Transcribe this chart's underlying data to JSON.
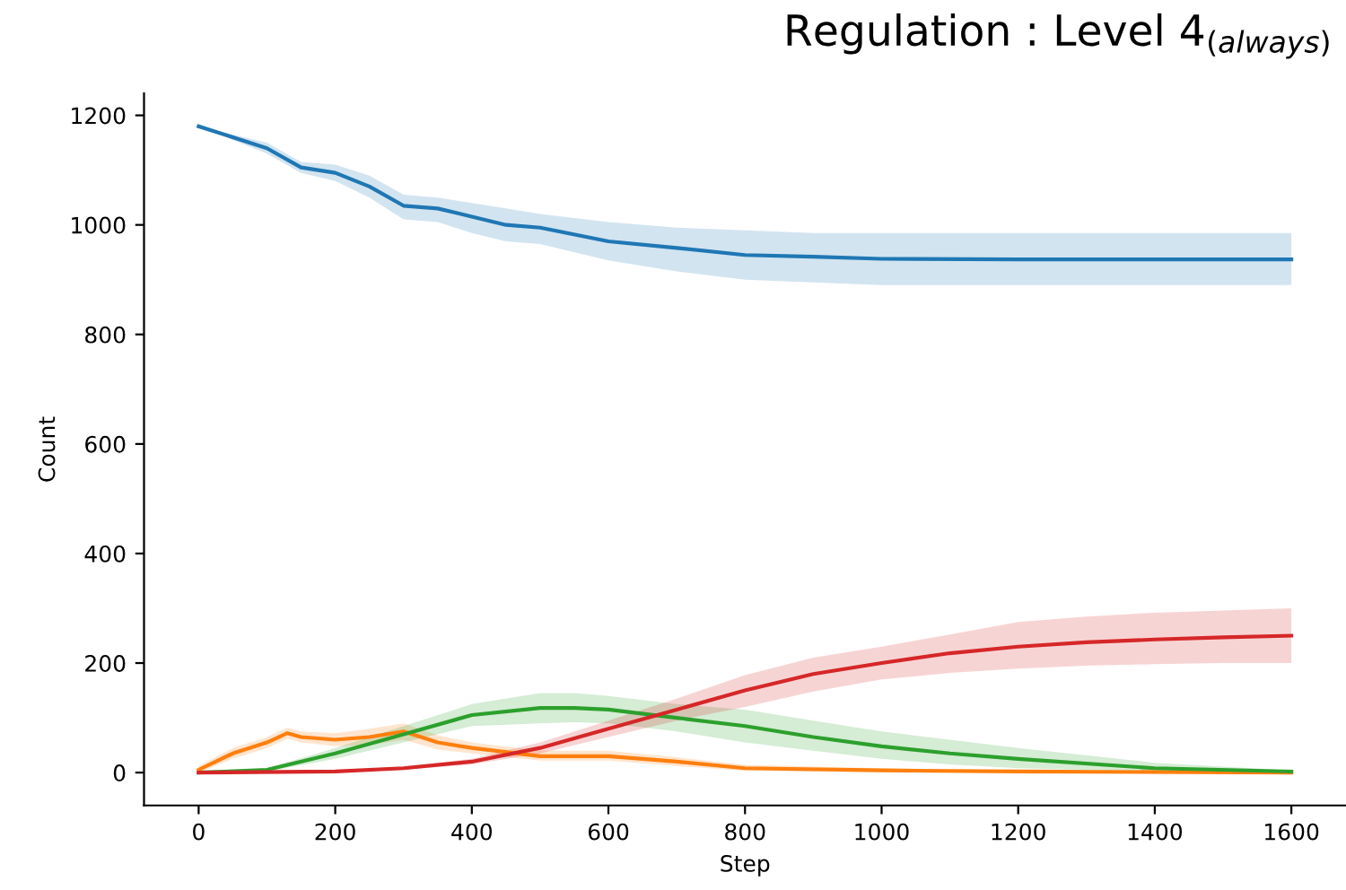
{
  "chart_data": {
    "type": "line",
    "title": "Regulation : Level 4$_{(always)}$",
    "xlabel": "Step",
    "ylabel": "Count",
    "xlim": [
      -80,
      1680
    ],
    "ylim": [
      -60,
      1240
    ],
    "xticks": [
      0,
      200,
      400,
      600,
      800,
      1000,
      1200,
      1400,
      1600
    ],
    "yticks": [
      0,
      200,
      400,
      600,
      800,
      1000,
      1200
    ],
    "grid": false,
    "series": [
      {
        "color": "#1f77b4",
        "x": [
          0,
          100,
          150,
          200,
          250,
          300,
          350,
          400,
          450,
          500,
          600,
          700,
          800,
          900,
          1000,
          1200,
          1400,
          1600
        ],
        "values": [
          1180,
          1140,
          1105,
          1095,
          1070,
          1035,
          1030,
          1015,
          1000,
          995,
          970,
          958,
          945,
          942,
          938,
          937,
          937,
          937
        ],
        "lower": [
          1180,
          1130,
          1095,
          1080,
          1050,
          1010,
          1005,
          985,
          970,
          965,
          935,
          915,
          900,
          895,
          890,
          890,
          890,
          890
        ],
        "upper": [
          1180,
          1150,
          1115,
          1110,
          1090,
          1055,
          1050,
          1040,
          1030,
          1020,
          1005,
          995,
          990,
          985,
          985,
          985,
          985,
          985
        ]
      },
      {
        "color": "#ff7f0e",
        "x": [
          0,
          50,
          100,
          130,
          150,
          200,
          250,
          300,
          350,
          400,
          500,
          600,
          700,
          800,
          1000,
          1200,
          1600
        ],
        "values": [
          5,
          35,
          55,
          72,
          65,
          60,
          65,
          75,
          55,
          45,
          30,
          30,
          20,
          8,
          4,
          2,
          0
        ],
        "lower": [
          0,
          25,
          45,
          62,
          55,
          48,
          50,
          60,
          42,
          35,
          22,
          22,
          12,
          3,
          1,
          0,
          0
        ],
        "upper": [
          12,
          45,
          65,
          82,
          75,
          72,
          80,
          90,
          68,
          55,
          40,
          40,
          28,
          14,
          8,
          4,
          1
        ]
      },
      {
        "color": "#2ca02c",
        "x": [
          0,
          100,
          200,
          300,
          400,
          500,
          550,
          600,
          700,
          800,
          900,
          1000,
          1100,
          1200,
          1400,
          1600
        ],
        "values": [
          0,
          5,
          35,
          70,
          105,
          118,
          118,
          115,
          100,
          85,
          65,
          48,
          35,
          25,
          8,
          2
        ],
        "lower": [
          0,
          2,
          25,
          55,
          85,
          90,
          92,
          90,
          75,
          55,
          40,
          25,
          15,
          8,
          2,
          0
        ],
        "upper": [
          0,
          8,
          45,
          85,
          125,
          145,
          145,
          140,
          125,
          115,
          95,
          75,
          60,
          45,
          18,
          4
        ]
      },
      {
        "color": "#d62728",
        "x": [
          0,
          200,
          300,
          400,
          500,
          600,
          700,
          800,
          900,
          1000,
          1100,
          1200,
          1300,
          1400,
          1500,
          1600
        ],
        "values": [
          0,
          2,
          8,
          20,
          45,
          80,
          115,
          150,
          180,
          200,
          218,
          230,
          238,
          243,
          247,
          250
        ],
        "lower": [
          0,
          1,
          5,
          15,
          35,
          65,
          95,
          120,
          148,
          170,
          182,
          190,
          195,
          198,
          200,
          200
        ],
        "upper": [
          0,
          3,
          11,
          25,
          55,
          95,
          135,
          178,
          210,
          230,
          252,
          275,
          285,
          292,
          296,
          300
        ]
      }
    ]
  }
}
